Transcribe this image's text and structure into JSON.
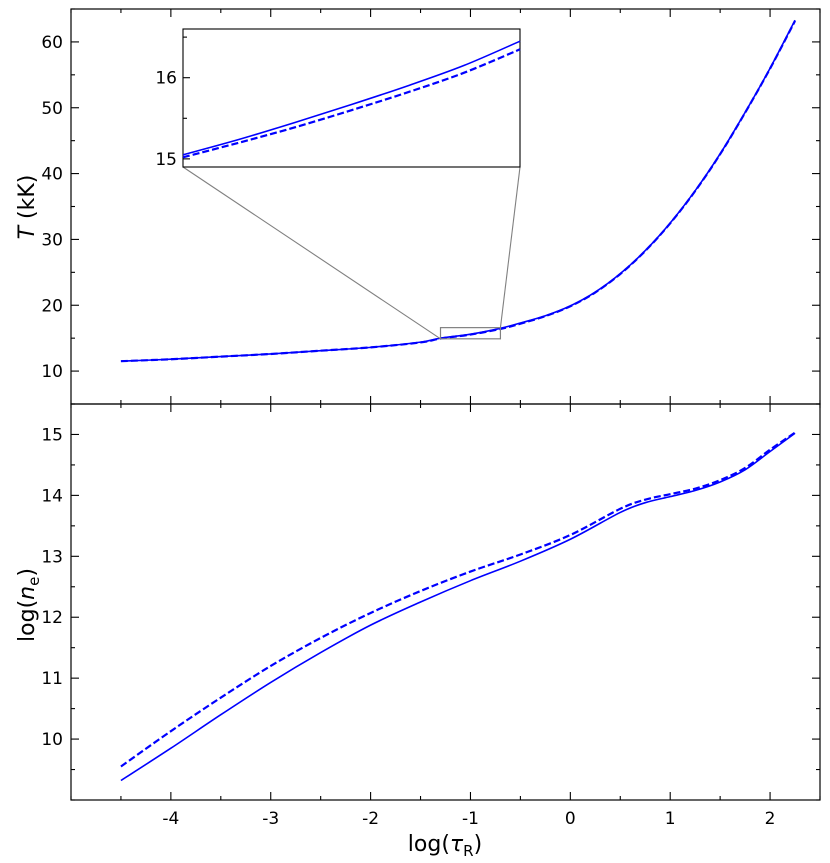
{
  "chart_data": [
    {
      "type": "line",
      "panel": "top",
      "ylabel_symbol": "T",
      "ylabel_unit": " (kK)",
      "xlim": [
        -5.0,
        2.5
      ],
      "ylim": [
        5,
        65
      ],
      "yticks": [
        10,
        20,
        30,
        40,
        50,
        60
      ],
      "yticklabels": [
        "10",
        "20",
        "30",
        "40",
        "50",
        "60"
      ],
      "series": [
        {
          "style": "solid",
          "color": "#0000ff",
          "x": [
            -4.5,
            -4.0,
            -3.5,
            -3.0,
            -2.5,
            -2.0,
            -1.5,
            -1.3,
            -1.0,
            -0.7,
            -0.5,
            -0.25,
            0.0,
            0.25,
            0.5,
            0.75,
            1.0,
            1.25,
            1.5,
            1.75,
            2.0,
            2.25
          ],
          "y": [
            11.5,
            11.8,
            12.2,
            12.6,
            13.1,
            13.6,
            14.4,
            15.0,
            15.6,
            16.5,
            17.3,
            18.4,
            19.9,
            22.0,
            24.8,
            28.3,
            32.5,
            37.4,
            43.0,
            49.3,
            56.0,
            63.3
          ]
        },
        {
          "style": "dashed",
          "color": "#0000ff",
          "x": [
            -4.5,
            -4.0,
            -3.5,
            -3.0,
            -2.5,
            -2.0,
            -1.5,
            -1.3,
            -1.0,
            -0.7,
            -0.5,
            -0.25,
            0.0,
            0.25,
            0.5,
            0.75,
            1.0,
            1.25,
            1.5,
            1.75,
            2.0,
            2.25
          ],
          "y": [
            11.5,
            11.8,
            12.2,
            12.6,
            13.1,
            13.6,
            14.35,
            14.95,
            15.55,
            16.4,
            17.2,
            18.35,
            19.85,
            21.95,
            24.75,
            28.25,
            32.45,
            37.35,
            42.95,
            49.25,
            55.95,
            63.2
          ]
        }
      ],
      "inset": {
        "xlim": [
          -1.3,
          -0.7
        ],
        "ylim": [
          14.9,
          16.6
        ],
        "yticks": [
          15,
          16
        ],
        "yticklabels": [
          "15",
          "16"
        ],
        "series": [
          {
            "style": "solid",
            "color": "#0000ff",
            "x": [
              -1.3,
              -1.2,
              -1.1,
              -1.0,
              -0.9,
              -0.8,
              -0.7
            ],
            "y": [
              15.05,
              15.24,
              15.45,
              15.67,
              15.9,
              16.15,
              16.45
            ]
          },
          {
            "style": "dashed",
            "color": "#0000ff",
            "x": [
              -1.3,
              -1.2,
              -1.1,
              -1.0,
              -0.9,
              -0.8,
              -0.7
            ],
            "y": [
              15.02,
              15.2,
              15.39,
              15.6,
              15.82,
              16.06,
              16.35
            ]
          }
        ]
      }
    },
    {
      "type": "line",
      "panel": "bottom",
      "ylabel_prefix": "log(",
      "ylabel_symbol": "n",
      "ylabel_sub": "e",
      "ylabel_suffix": ")",
      "xlabel_prefix": "log(",
      "xlabel_symbol": "τ",
      "xlabel_sub": "R",
      "xlabel_suffix": ")",
      "xlim": [
        -5.0,
        2.5
      ],
      "ylim": [
        9.0,
        15.5
      ],
      "xticks": [
        -4,
        -3,
        -2,
        -1,
        0,
        1,
        2
      ],
      "xticklabels": [
        "-4",
        "-3",
        "-2",
        "-1",
        "0",
        "1",
        "2"
      ],
      "yticks": [
        10,
        11,
        12,
        13,
        14,
        15
      ],
      "yticklabels": [
        "10",
        "11",
        "12",
        "13",
        "14",
        "15"
      ],
      "series": [
        {
          "style": "solid",
          "color": "#0000ff",
          "x": [
            -4.5,
            -4.0,
            -3.5,
            -3.0,
            -2.5,
            -2.0,
            -1.5,
            -1.0,
            -0.5,
            0.0,
            0.5,
            0.75,
            1.0,
            1.25,
            1.5,
            1.75,
            2.0,
            2.25
          ],
          "y": [
            9.32,
            9.85,
            10.4,
            10.93,
            11.42,
            11.87,
            12.25,
            12.6,
            12.92,
            13.28,
            13.72,
            13.88,
            13.98,
            14.08,
            14.22,
            14.42,
            14.72,
            15.02
          ]
        },
        {
          "style": "dashed",
          "color": "#0000ff",
          "x": [
            -4.5,
            -4.0,
            -3.5,
            -3.0,
            -2.5,
            -2.0,
            -1.5,
            -1.0,
            -0.5,
            0.0,
            0.5,
            0.75,
            1.0,
            1.25,
            1.5,
            1.75,
            2.0,
            2.25
          ],
          "y": [
            9.55,
            10.13,
            10.68,
            11.2,
            11.66,
            12.07,
            12.43,
            12.75,
            13.03,
            13.35,
            13.78,
            13.93,
            14.02,
            14.11,
            14.25,
            14.45,
            14.75,
            15.03
          ]
        }
      ]
    }
  ]
}
